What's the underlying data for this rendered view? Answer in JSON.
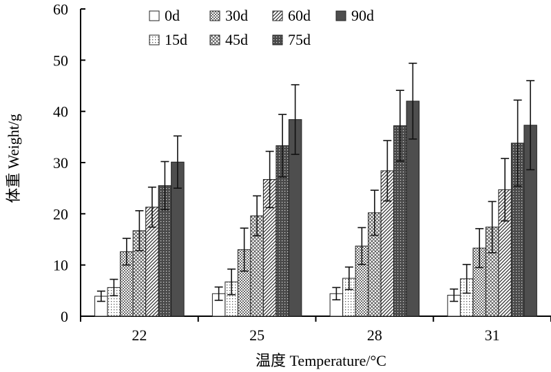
{
  "chart_data": {
    "type": "bar",
    "xlabel": "温度 Temperature/°C",
    "ylabel": "体重 Weight/g",
    "ylim": [
      0,
      60
    ],
    "yticks": [
      0,
      10,
      20,
      30,
      40,
      50,
      60
    ],
    "grid": false,
    "legend_position": "top",
    "categories": [
      "22",
      "25",
      "28",
      "31"
    ],
    "series": [
      {
        "name": "0d",
        "pattern": "open",
        "values": [
          3.9,
          4.4,
          4.4,
          4.1
        ],
        "errors": [
          1.0,
          1.3,
          1.2,
          1.2
        ]
      },
      {
        "name": "15d",
        "pattern": "dots",
        "values": [
          5.6,
          6.7,
          7.4,
          7.3
        ],
        "errors": [
          1.6,
          2.5,
          2.2,
          2.8
        ]
      },
      {
        "name": "30d",
        "pattern": "grid",
        "values": [
          12.6,
          13.0,
          13.7,
          13.3
        ],
        "errors": [
          2.6,
          4.2,
          3.6,
          3.8
        ]
      },
      {
        "name": "45d",
        "pattern": "cross",
        "values": [
          16.7,
          19.6,
          20.2,
          17.4
        ],
        "errors": [
          3.9,
          3.9,
          4.4,
          5.0
        ]
      },
      {
        "name": "60d",
        "pattern": "diagonal",
        "values": [
          21.3,
          26.7,
          28.4,
          24.7
        ],
        "errors": [
          3.9,
          5.5,
          5.9,
          6.1
        ]
      },
      {
        "name": "75d",
        "pattern": "dark-dots",
        "values": [
          25.5,
          33.3,
          37.2,
          33.8
        ],
        "errors": [
          4.7,
          6.1,
          6.9,
          8.4
        ]
      },
      {
        "name": "90d",
        "pattern": "dark",
        "values": [
          30.1,
          38.4,
          42.0,
          37.3
        ],
        "errors": [
          5.1,
          6.8,
          7.4,
          8.7
        ]
      }
    ]
  }
}
